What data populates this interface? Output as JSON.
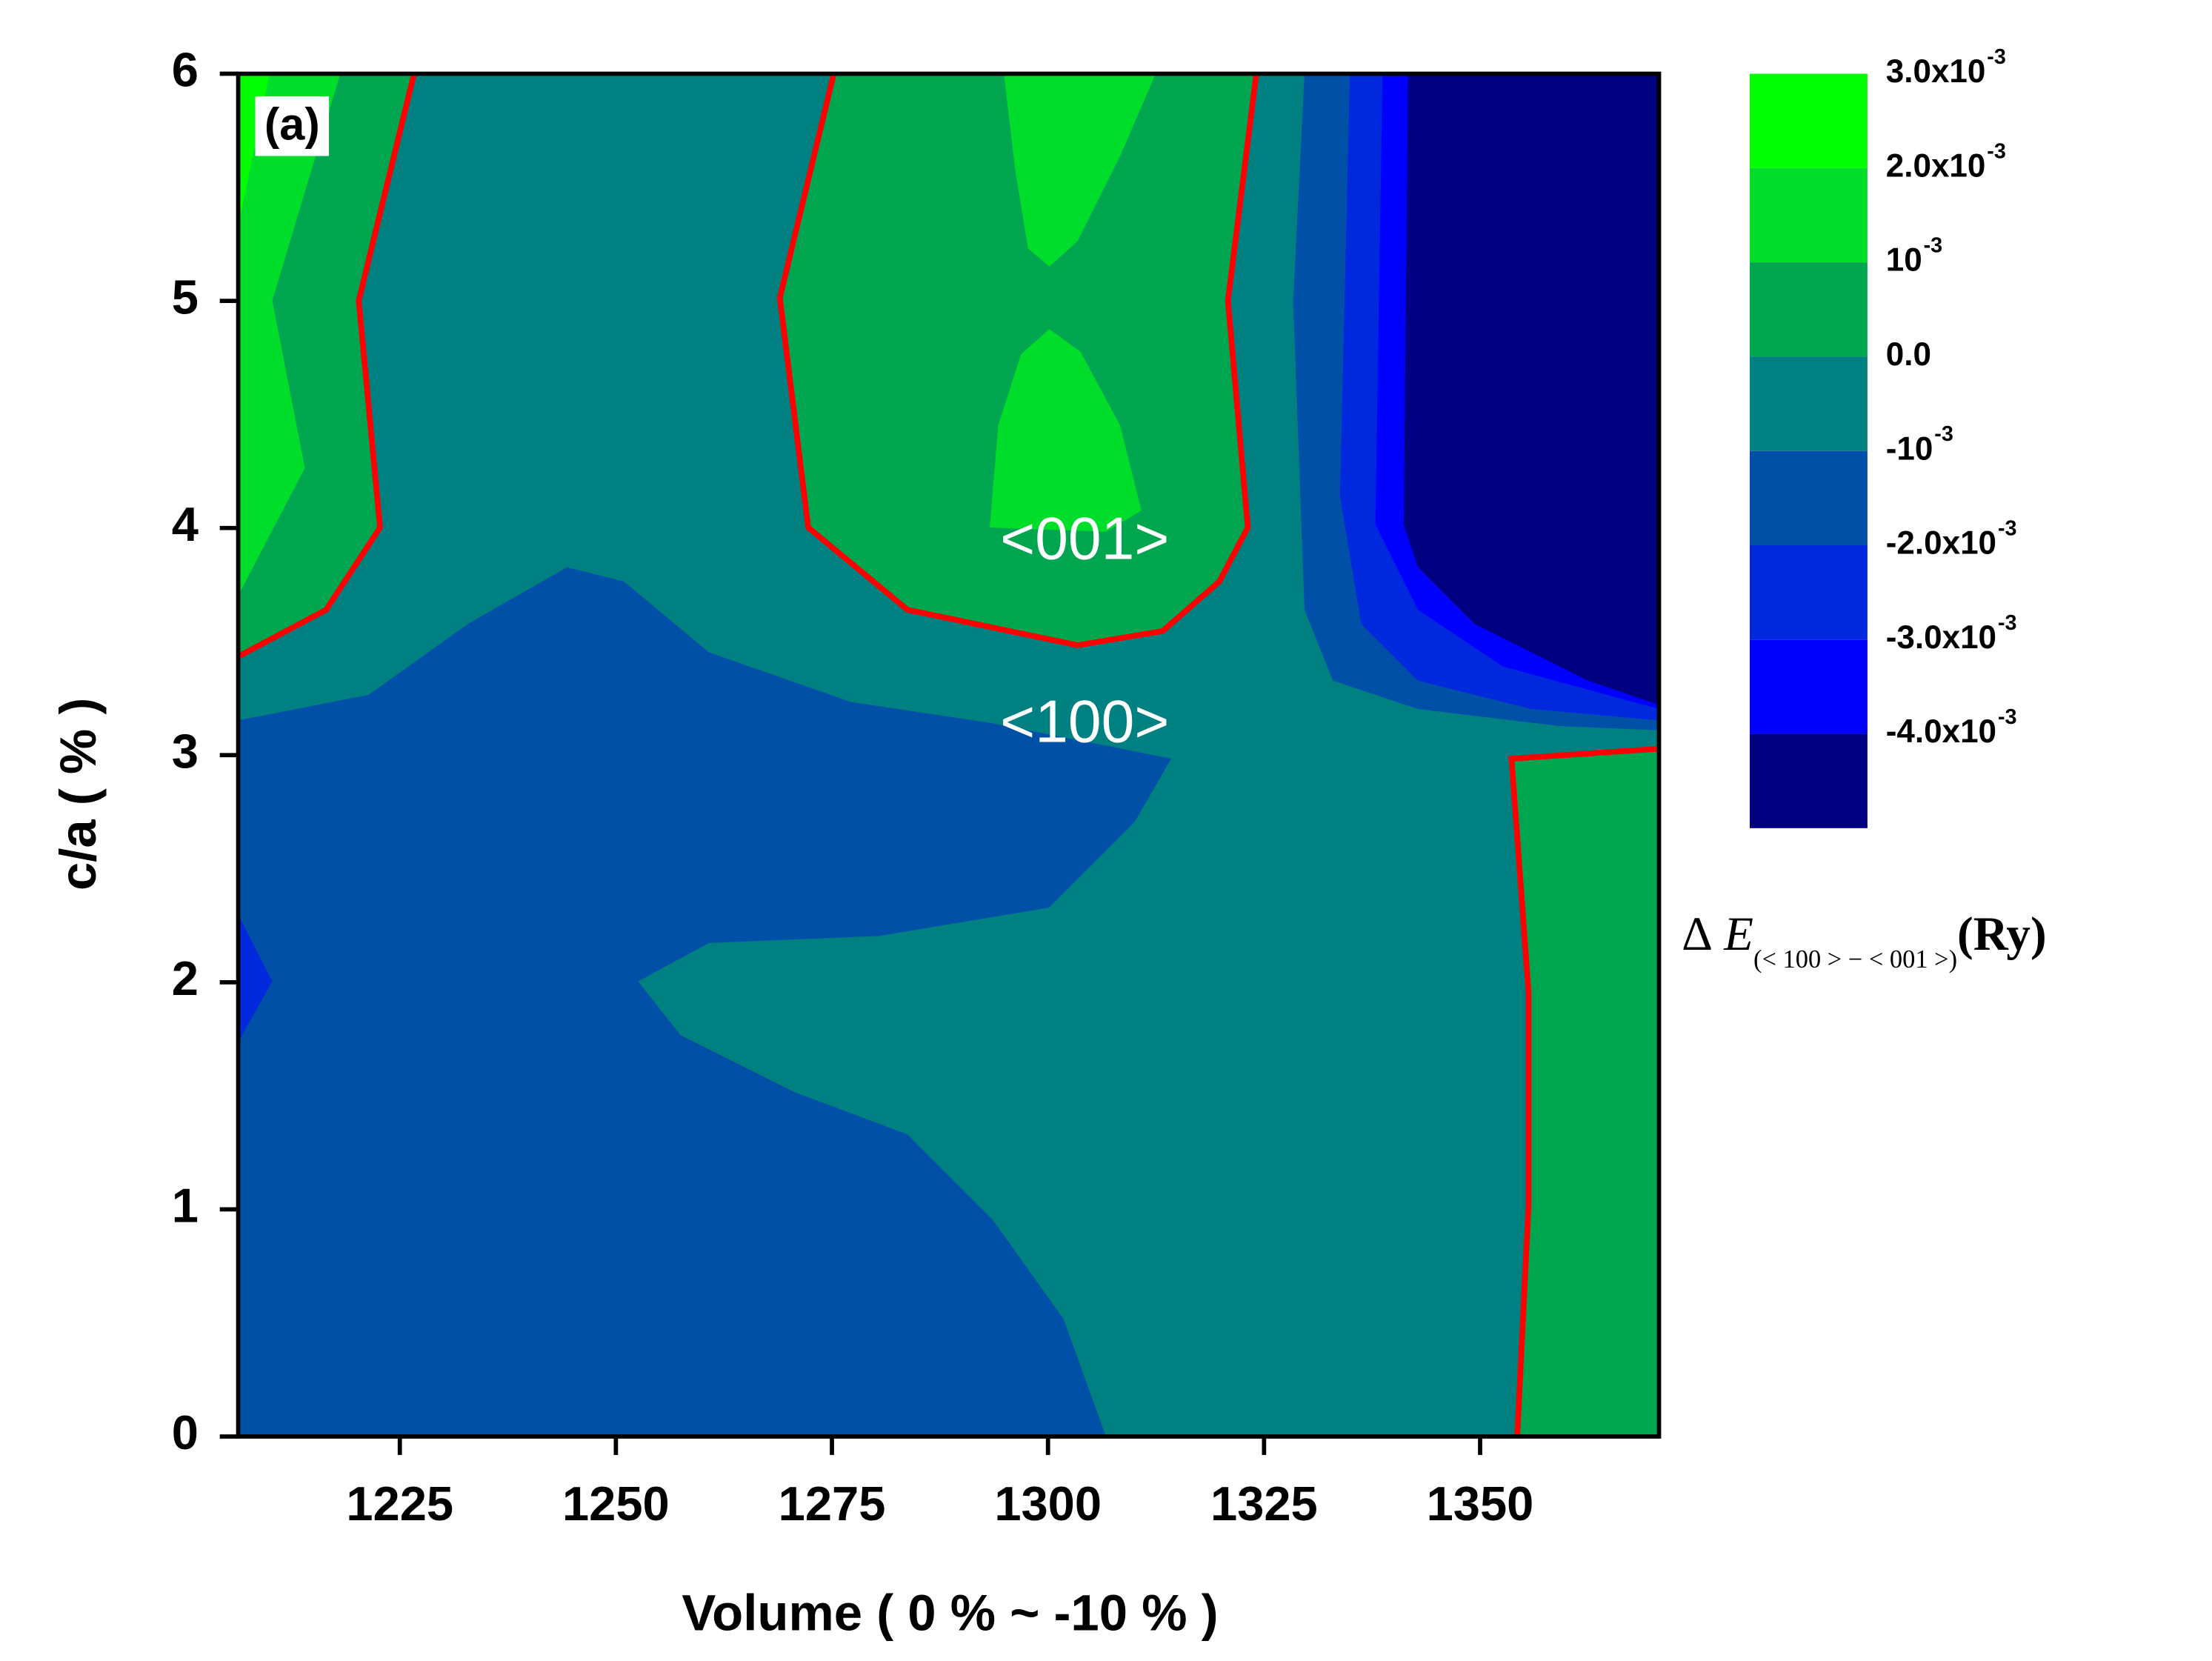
{
  "chart_data": {
    "type": "contour",
    "xlabel": "Volume ( 0 % ~ -10 % )",
    "ylabel": "c/a ( % )",
    "xlim": [
      1206.3,
      1370.7
    ],
    "xticks": [
      1225,
      1250,
      1275,
      1300,
      1325,
      1350
    ],
    "ylim": [
      0,
      6
    ],
    "yticks": [
      0,
      1,
      2,
      3,
      4,
      5,
      6
    ],
    "contour_line_color": "#ff0000",
    "annotations": [
      "(a)",
      "<001>",
      "<100>"
    ],
    "colorbar": {
      "levels": [
        -0.005,
        -0.004,
        -0.003,
        -0.002,
        -0.001,
        0,
        0.001,
        0.002,
        0.003
      ],
      "colors": [
        "#000080",
        "#0000ff",
        "#0028dd",
        "#0050a8",
        "#008080",
        "#00a550",
        "#00dd2a",
        "#00ff00"
      ],
      "ticks": [
        {
          "value": -0.004,
          "label": "-4.0x10",
          "sup": "-3"
        },
        {
          "value": -0.003,
          "label": "-3.0x10",
          "sup": "-3"
        },
        {
          "value": -0.002,
          "label": "-2.0x10",
          "sup": "-3"
        },
        {
          "value": -0.001,
          "label": "-10",
          "sup": "-3"
        },
        {
          "value": 0,
          "label": "0.0"
        },
        {
          "value": 0.001,
          "label": "10",
          "sup": "-3"
        },
        {
          "value": 0.002,
          "label": "2.0x10",
          "sup": "-3"
        },
        {
          "value": 0.003,
          "label": "3.0x10",
          "sup": "-3"
        }
      ],
      "title": {
        "symbol": "Δ",
        "variable": "E",
        "subscript": "(< 100 > − < 001 >)",
        "unit": "(Ry)"
      }
    }
  }
}
